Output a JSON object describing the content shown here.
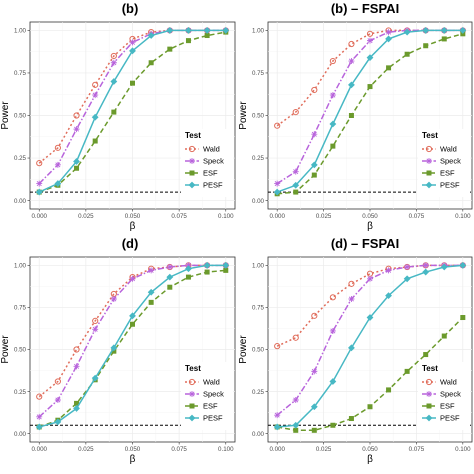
{
  "chart_data": [
    {
      "type": "line",
      "title": "(b)",
      "xlabel": "β",
      "ylabel": "Power",
      "xlim": [
        0,
        0.1
      ],
      "ylim": [
        0,
        1
      ],
      "x_ticks": [
        "0.000",
        "0.025",
        "0.050",
        "0.075",
        "0.100"
      ],
      "y_ticks": [
        "0.00",
        "0.25",
        "0.50",
        "0.75",
        "1.00"
      ],
      "reference_line_y": 0.05,
      "legend_title": "Test",
      "legend_placement": "bottom-right",
      "grid": true,
      "x": [
        0,
        0.01,
        0.02,
        0.03,
        0.04,
        0.05,
        0.06,
        0.07,
        0.08,
        0.09,
        0.1
      ],
      "series": [
        {
          "name": "Wald",
          "values": [
            0.22,
            0.31,
            0.5,
            0.68,
            0.85,
            0.95,
            0.99,
            1.0,
            1.0,
            1.0,
            1.0
          ]
        },
        {
          "name": "Speck",
          "values": [
            0.1,
            0.21,
            0.42,
            0.62,
            0.81,
            0.93,
            0.98,
            1.0,
            1.0,
            1.0,
            1.0
          ]
        },
        {
          "name": "ESF",
          "values": [
            0.05,
            0.09,
            0.19,
            0.35,
            0.52,
            0.69,
            0.81,
            0.89,
            0.94,
            0.97,
            0.99
          ]
        },
        {
          "name": "PESF",
          "values": [
            0.05,
            0.1,
            0.23,
            0.49,
            0.7,
            0.88,
            0.97,
            1.0,
            1.0,
            1.0,
            1.0
          ]
        }
      ]
    },
    {
      "type": "line",
      "title": "(b) – FSPAI",
      "xlabel": "β",
      "ylabel": "Power",
      "xlim": [
        0,
        0.1
      ],
      "ylim": [
        0,
        1
      ],
      "x_ticks": [
        "0.000",
        "0.025",
        "0.050",
        "0.075",
        "0.100"
      ],
      "y_ticks": [
        "0.00",
        "0.25",
        "0.50",
        "0.75",
        "1.00"
      ],
      "reference_line_y": 0.05,
      "legend_title": "Test",
      "legend_placement": "bottom-right",
      "grid": true,
      "x": [
        0,
        0.01,
        0.02,
        0.03,
        0.04,
        0.05,
        0.06,
        0.07,
        0.08,
        0.09,
        0.1
      ],
      "series": [
        {
          "name": "Wald",
          "values": [
            0.44,
            0.52,
            0.65,
            0.82,
            0.92,
            0.98,
            1.0,
            1.0,
            1.0,
            1.0,
            1.0
          ]
        },
        {
          "name": "Speck",
          "values": [
            0.1,
            0.17,
            0.39,
            0.62,
            0.82,
            0.94,
            0.99,
            1.0,
            1.0,
            1.0,
            1.0
          ]
        },
        {
          "name": "ESF",
          "values": [
            0.04,
            0.05,
            0.15,
            0.32,
            0.5,
            0.67,
            0.78,
            0.86,
            0.91,
            0.95,
            0.98
          ]
        },
        {
          "name": "PESF",
          "values": [
            0.05,
            0.09,
            0.21,
            0.45,
            0.68,
            0.84,
            0.95,
            0.99,
            1.0,
            1.0,
            1.0
          ]
        }
      ]
    },
    {
      "type": "line",
      "title": "(d)",
      "xlabel": "β",
      "ylabel": "Power",
      "xlim": [
        0,
        0.1
      ],
      "ylim": [
        0,
        1
      ],
      "x_ticks": [
        "0.000",
        "0.025",
        "0.050",
        "0.075",
        "0.100"
      ],
      "y_ticks": [
        "0.00",
        "0.25",
        "0.50",
        "0.75",
        "1.00"
      ],
      "reference_line_y": 0.05,
      "legend_title": "Test",
      "legend_placement": "bottom-right",
      "grid": true,
      "x": [
        0,
        0.01,
        0.02,
        0.03,
        0.04,
        0.05,
        0.06,
        0.07,
        0.08,
        0.09,
        0.1
      ],
      "series": [
        {
          "name": "Wald",
          "values": [
            0.22,
            0.31,
            0.5,
            0.67,
            0.83,
            0.93,
            0.98,
            0.99,
            1.0,
            1.0,
            1.0
          ]
        },
        {
          "name": "Speck",
          "values": [
            0.1,
            0.2,
            0.4,
            0.62,
            0.8,
            0.92,
            0.97,
            0.99,
            1.0,
            1.0,
            1.0
          ]
        },
        {
          "name": "ESF",
          "values": [
            0.04,
            0.08,
            0.18,
            0.32,
            0.49,
            0.65,
            0.78,
            0.87,
            0.93,
            0.96,
            0.97
          ]
        },
        {
          "name": "PESF",
          "values": [
            0.04,
            0.07,
            0.15,
            0.33,
            0.51,
            0.7,
            0.84,
            0.93,
            0.98,
            1.0,
            1.0
          ]
        }
      ]
    },
    {
      "type": "line",
      "title": "(d) – FSPAI",
      "xlabel": "β",
      "ylabel": "Power",
      "xlim": [
        0,
        0.1
      ],
      "ylim": [
        0,
        1
      ],
      "x_ticks": [
        "0.000",
        "0.025",
        "0.050",
        "0.075",
        "0.100"
      ],
      "y_ticks": [
        "0.00",
        "0.25",
        "0.50",
        "0.75",
        "1.00"
      ],
      "reference_line_y": 0.05,
      "legend_title": "Test",
      "legend_placement": "bottom-right",
      "grid": true,
      "x": [
        0,
        0.01,
        0.02,
        0.03,
        0.04,
        0.05,
        0.06,
        0.07,
        0.08,
        0.09,
        0.1
      ],
      "series": [
        {
          "name": "Wald",
          "values": [
            0.52,
            0.57,
            0.7,
            0.81,
            0.89,
            0.95,
            0.98,
            0.99,
            1.0,
            1.0,
            1.0
          ]
        },
        {
          "name": "Speck",
          "values": [
            0.11,
            0.2,
            0.37,
            0.61,
            0.8,
            0.92,
            0.97,
            0.99,
            1.0,
            1.0,
            1.0
          ]
        },
        {
          "name": "ESF",
          "values": [
            0.04,
            0.02,
            0.02,
            0.05,
            0.09,
            0.16,
            0.26,
            0.37,
            0.47,
            0.58,
            0.69
          ]
        },
        {
          "name": "PESF",
          "values": [
            0.04,
            0.05,
            0.16,
            0.31,
            0.51,
            0.69,
            0.82,
            0.92,
            0.96,
            0.99,
            1.0
          ]
        }
      ]
    }
  ],
  "style": {
    "colors": {
      "Wald": "#e06c5a",
      "Speck": "#b864dc",
      "ESF": "#6b9a2c",
      "PESF": "#47b8c4"
    },
    "panel_background": "#ffffff",
    "grid_major": "#ebebeb",
    "grid_minor": "#f5f5f5"
  }
}
